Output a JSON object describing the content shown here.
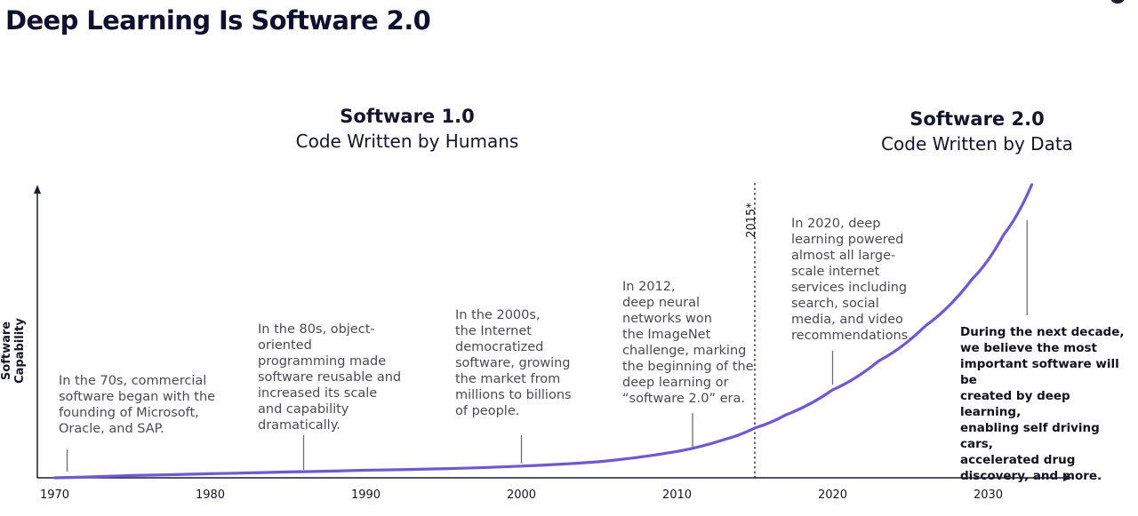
{
  "title": "Deep Learning Is Software 2.0",
  "eras": [
    {
      "name": "Software 1.0",
      "subtitle": "Code Written by Humans"
    },
    {
      "name": "Software 2.0",
      "subtitle": "Code Written by Data"
    }
  ],
  "annotations": [
    "In the 70s, commercial\nsoftware began with the\nfounding of Microsoft,\nOracle, and SAP.",
    "In the 80s, object-\noriented\nprogramming made\nsoftware reusable and\nincreased its scale\nand capability\ndramatically.",
    "In the 2000s,\nthe Internet\ndemocratized\nsoftware, growing\nthe market from\nmillions to billions\nof people.",
    "In 2012,\ndeep neural\nnetworks won\nthe ImageNet\nchallenge, marking\nthe beginning of the\ndeep learning or\n“software 2.0” era.",
    "In 2020, deep\nlearning powered\nalmost all large-\nscale internet\nservices including\nsearch, social\nmedia, and video\nrecommendations.",
    "During the next decade,\nwe believe the most\nimportant software will be\ncreated by deep learning,\nenabling self driving cars,\naccelerated drug\ndiscovery, and more."
  ],
  "chart_data": {
    "type": "line",
    "ylabel": "Software Capability",
    "xlabel": "",
    "x_ticks": [
      "1970",
      "1980",
      "1990",
      "2000",
      "2010",
      "2020",
      "2030"
    ],
    "x_tick_values": [
      1970,
      1980,
      1990,
      2000,
      2010,
      2020,
      2030
    ],
    "series": [
      {
        "color": "#6e57e0",
        "x": [
          1970,
          1975,
          1980,
          1985,
          1990,
          1995,
          2000,
          2005,
          2010,
          2013,
          2015,
          2017,
          2020,
          2023,
          2026,
          2029,
          2031,
          2032.8
        ],
        "y": [
          0.0,
          0.008,
          0.014,
          0.02,
          0.026,
          0.031,
          0.04,
          0.055,
          0.09,
          0.13,
          0.17,
          0.215,
          0.3,
          0.4,
          0.52,
          0.68,
          0.83,
          1.0
        ]
      }
    ],
    "vertical_marker": {
      "x": 2015,
      "label": "2015*"
    },
    "annotation_years": [
      1970.8,
      1986,
      2000,
      2011,
      2020,
      2032.5
    ],
    "grid": false,
    "legend": "none"
  }
}
